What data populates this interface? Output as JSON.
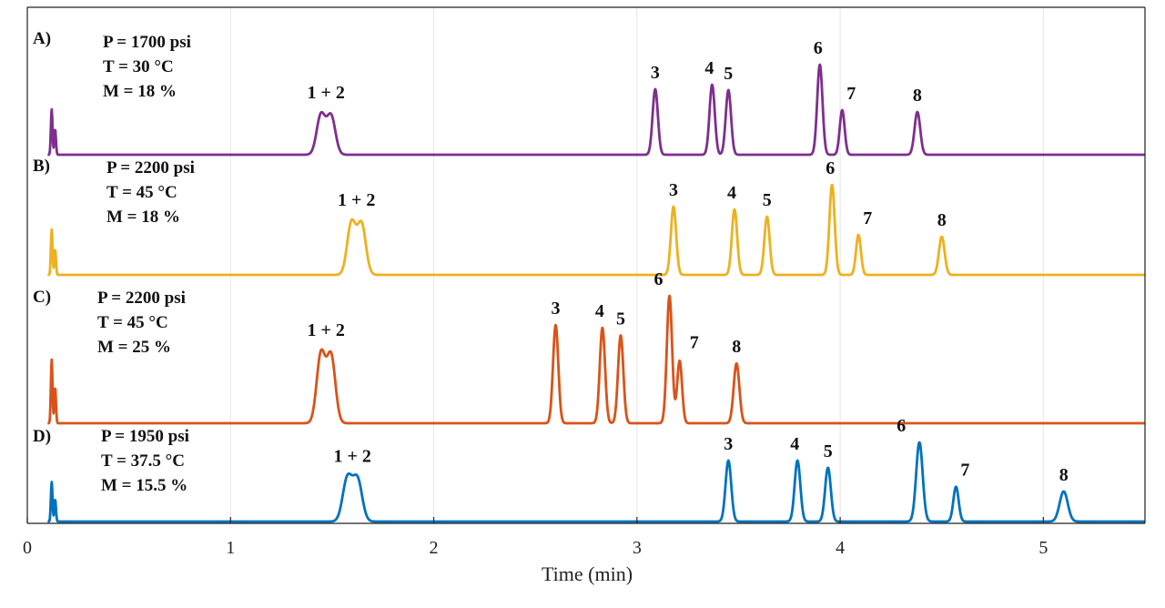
{
  "chart_data": {
    "type": "line",
    "xlabel": "Time (min)",
    "ylabel": "",
    "xlim": [
      0,
      5.5
    ],
    "x_ticks": [
      "0",
      "1",
      "2",
      "3",
      "4",
      "5"
    ],
    "grid": "vertical gridlines at each x tick",
    "legend": "none",
    "panels": [
      {
        "id": "A)",
        "color": "#7e2f8e",
        "conditions": [
          "P = 1700 psi",
          "T = 30 °C",
          "M = 18 %"
        ],
        "peaks": [
          {
            "label": "1 + 2",
            "time": 1.47,
            "height": 0.46
          },
          {
            "label": "3",
            "time": 3.09,
            "height": 0.72
          },
          {
            "label": "4",
            "time": 3.37,
            "height": 0.77
          },
          {
            "label": "5",
            "time": 3.45,
            "height": 0.71
          },
          {
            "label": "6",
            "time": 3.9,
            "height": 0.99
          },
          {
            "label": "7",
            "time": 4.01,
            "height": 0.49
          },
          {
            "label": "8",
            "time": 4.38,
            "height": 0.47
          }
        ]
      },
      {
        "id": "B)",
        "color": "#edb120",
        "conditions": [
          "P = 2200 psi",
          "T = 45 °C",
          "M = 18 %"
        ],
        "peaks": [
          {
            "label": "1 + 2",
            "time": 1.62,
            "height": 0.6
          },
          {
            "label": "3",
            "time": 3.18,
            "height": 0.75
          },
          {
            "label": "4",
            "time": 3.48,
            "height": 0.72
          },
          {
            "label": "5",
            "time": 3.64,
            "height": 0.64
          },
          {
            "label": "6",
            "time": 3.96,
            "height": 0.99
          },
          {
            "label": "7",
            "time": 4.09,
            "height": 0.44
          },
          {
            "label": "8",
            "time": 4.5,
            "height": 0.42
          }
        ]
      },
      {
        "id": "C)",
        "color": "#d95319",
        "conditions": [
          "P = 2200 psi",
          "T = 45 °C",
          "M = 25 %"
        ],
        "peaks": [
          {
            "label": "1 + 2",
            "time": 1.47,
            "height": 0.57
          },
          {
            "label": "3",
            "time": 2.6,
            "height": 0.77
          },
          {
            "label": "4",
            "time": 2.83,
            "height": 0.75
          },
          {
            "label": "5",
            "time": 2.92,
            "height": 0.69
          },
          {
            "label": "6",
            "time": 3.16,
            "height": 1.0
          },
          {
            "label": "7",
            "time": 3.21,
            "height": 0.49
          },
          {
            "label": "8",
            "time": 3.49,
            "height": 0.47
          }
        ]
      },
      {
        "id": "D)",
        "color": "#0072bd",
        "conditions": [
          "P = 1950 psi",
          "T = 37.5 °C",
          "M = 15.5 %"
        ],
        "peaks": [
          {
            "label": "1 + 2",
            "time": 1.6,
            "height": 0.57
          },
          {
            "label": "3",
            "time": 3.45,
            "height": 0.77
          },
          {
            "label": "4",
            "time": 3.79,
            "height": 0.77
          },
          {
            "label": "5",
            "time": 3.94,
            "height": 0.68
          },
          {
            "label": "6",
            "time": 4.39,
            "height": 1.0
          },
          {
            "label": "7",
            "time": 4.57,
            "height": 0.44
          },
          {
            "label": "8",
            "time": 5.1,
            "height": 0.38
          }
        ]
      }
    ]
  }
}
